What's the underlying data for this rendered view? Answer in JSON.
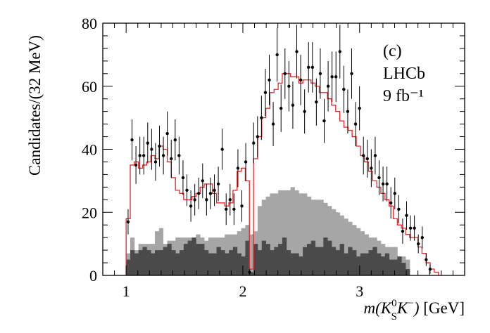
{
  "chart_data": {
    "type": "histogram",
    "panel_label": "(c)",
    "experiment": "LHCb",
    "luminosity": "9 fb⁻¹",
    "ylabel": "Candidates/(32 MeV)",
    "xlabel_parts": {
      "prefix": "m(K",
      "sup": "0",
      "sub": "S",
      "middle": "K",
      "sup2": "−",
      "suffix": ")",
      "unit": " [GeV]"
    },
    "xlim": [
      0.8,
      3.9
    ],
    "ylim": [
      0,
      80
    ],
    "x_ticks": [
      "1",
      "2",
      "3"
    ],
    "y_ticks": [
      "0",
      "20",
      "40",
      "60",
      "80"
    ],
    "bin_start": 1.0,
    "bin_width": 0.032,
    "colors": {
      "data": "#000000",
      "fit": "#e8262b",
      "light_component": "#a6a6a6",
      "dark_component": "#4a4a4a"
    },
    "series": [
      {
        "role": "data",
        "values": [
          17,
          43,
          35,
          38,
          38,
          42,
          40,
          36,
          41,
          38,
          45,
          37,
          43,
          38,
          31,
          27,
          22,
          24,
          26,
          30,
          24,
          26,
          27,
          29,
          40,
          21,
          24,
          21,
          34,
          22,
          36,
          1,
          42,
          44,
          50,
          58,
          62,
          48,
          70,
          53,
          64,
          60,
          54,
          71,
          62,
          52,
          66,
          66,
          55,
          64,
          49,
          60,
          63,
          63,
          71,
          59,
          52,
          64,
          48,
          53,
          38,
          37,
          34,
          38,
          31,
          29,
          29,
          23,
          26,
          21,
          14,
          19,
          15,
          15,
          10,
          12,
          5,
          2
        ],
        "errors": [
          4,
          6.5,
          6,
          6,
          6,
          6.5,
          6.5,
          6,
          6.5,
          6,
          7,
          6,
          6.5,
          6,
          5.5,
          5,
          5,
          5,
          5,
          5.5,
          5,
          5,
          5,
          5.5,
          6.5,
          5,
          5,
          5,
          6,
          5,
          6,
          1,
          6.5,
          6.5,
          7,
          7.5,
          8,
          7,
          8.5,
          7.5,
          8,
          8,
          7.5,
          8.5,
          8,
          7,
          8,
          8,
          7.5,
          8,
          7,
          8,
          8,
          8,
          8.5,
          7.5,
          7,
          8,
          7,
          7,
          6,
          6,
          6,
          6,
          5.5,
          5.5,
          5.5,
          5,
          5,
          4.5,
          4,
          4.5,
          4,
          4,
          3,
          3.5,
          2,
          1.5
        ]
      },
      {
        "role": "fit",
        "values": [
          18,
          35,
          36,
          34,
          35,
          36,
          38,
          37,
          41,
          40,
          36,
          31,
          27,
          26,
          24,
          24,
          25,
          26,
          28,
          29,
          29,
          26,
          23,
          23,
          22,
          23,
          27,
          33,
          34,
          30,
          2,
          37,
          44,
          50,
          53,
          58,
          59,
          61,
          64,
          64,
          63,
          63,
          61,
          62,
          62,
          61,
          60,
          58,
          58,
          56,
          54,
          52,
          49,
          47,
          46,
          44,
          41,
          38,
          36,
          33,
          30,
          28,
          26,
          24,
          22,
          18,
          16,
          15,
          13,
          12,
          12,
          9,
          7,
          4,
          2,
          1
        ]
      },
      {
        "role": "light_component",
        "values": [
          7,
          12,
          8,
          10,
          10,
          10,
          10,
          14,
          15,
          10,
          11,
          11,
          12,
          12,
          12,
          12,
          12,
          13,
          12,
          11,
          12,
          12,
          12,
          12,
          13,
          13,
          13,
          14,
          15,
          16,
          13,
          14,
          22,
          24,
          25,
          26,
          26,
          27,
          27,
          27,
          28,
          27,
          26,
          26,
          25,
          24,
          24,
          24,
          23,
          22,
          21,
          20,
          19,
          18,
          17,
          16,
          15,
          14,
          13,
          12,
          12,
          11,
          10,
          9,
          9,
          9,
          6,
          6,
          5
        ]
      },
      {
        "role": "dark_component",
        "values": [
          5,
          8,
          7,
          8,
          9,
          8,
          7,
          8,
          8,
          9,
          10,
          8,
          7,
          8,
          10,
          11,
          12,
          10,
          10,
          8,
          7,
          7,
          9,
          8,
          7,
          8,
          9,
          7,
          6,
          11,
          1,
          10,
          8,
          11,
          10,
          8,
          9,
          10,
          12,
          8,
          7,
          7,
          6,
          9,
          10,
          11,
          9,
          9,
          12,
          11,
          9,
          8,
          10,
          7,
          9,
          8,
          6,
          7,
          7,
          8,
          9,
          7,
          6,
          7,
          5,
          5,
          6,
          4,
          2
        ]
      }
    ]
  }
}
